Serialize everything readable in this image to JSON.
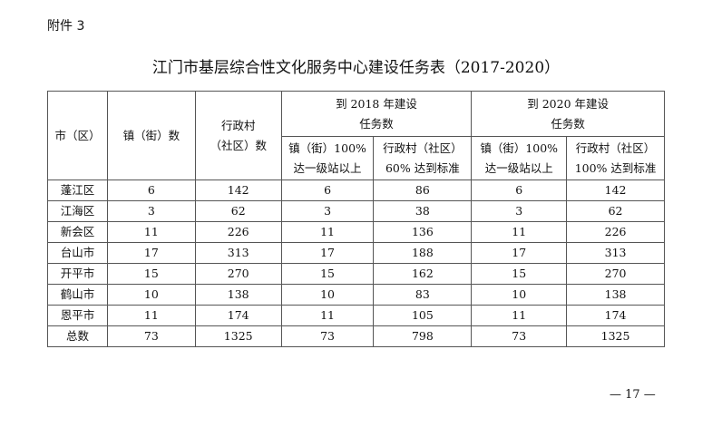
{
  "attachment": "附件 3",
  "title": "江门市基层综合性文化服务中心建设任务表（2017-2020）",
  "table": {
    "header_top": [
      [
        "市（区）"
      ],
      [
        "镇（街）数"
      ],
      [
        "行政村",
        "（社区）数"
      ],
      [
        "到 2018 年建设",
        "任务数"
      ],
      [
        "到 2020 年建设",
        "任务数"
      ]
    ],
    "header_sub": [
      [
        "镇（街）100%",
        "达一级站以上"
      ],
      [
        "行政村（社区）",
        "60% 达到标准"
      ],
      [
        "镇（街）100%",
        "达一级站以上"
      ],
      [
        "行政村（社区）",
        "100% 达到标准"
      ]
    ],
    "rows": [
      [
        "蓬江区",
        6,
        142,
        6,
        86,
        6,
        142
      ],
      [
        "江海区",
        3,
        62,
        3,
        38,
        3,
        62
      ],
      [
        "新会区",
        11,
        226,
        11,
        136,
        11,
        226
      ],
      [
        "台山市",
        17,
        313,
        17,
        188,
        17,
        313
      ],
      [
        "开平市",
        15,
        270,
        15,
        162,
        15,
        270
      ],
      [
        "鹤山市",
        10,
        138,
        10,
        83,
        10,
        138
      ],
      [
        "恩平市",
        11,
        174,
        11,
        105,
        11,
        174
      ],
      [
        "总数",
        73,
        1325,
        73,
        798,
        73,
        1325
      ]
    ]
  },
  "page_number": "— 17 —"
}
